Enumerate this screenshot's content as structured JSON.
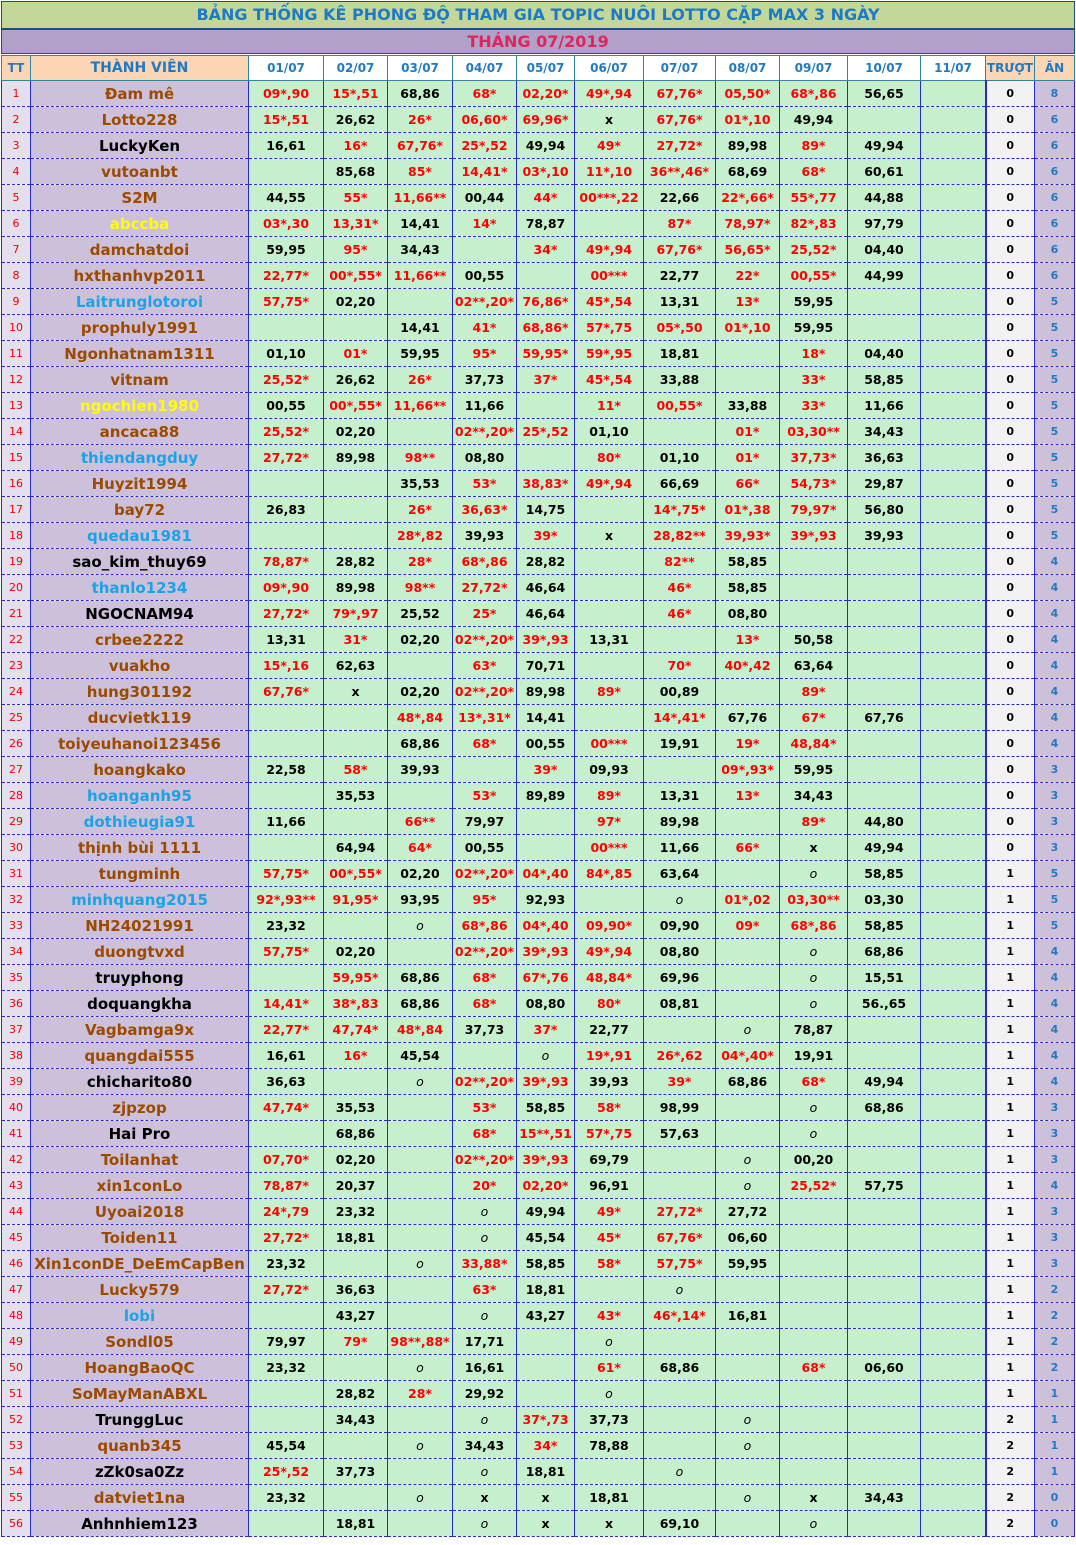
{
  "title": "BẢNG THỐNG KÊ PHONG ĐỘ  THAM GIA TOPIC NUÔI LOTTO CẶP MAX 3 NGÀY",
  "month": "THÁNG 07/2019",
  "headers": {
    "tt": "TT",
    "member": "THÀNH VIÊN",
    "days": [
      "01/07",
      "02/07",
      "03/07",
      "04/07",
      "05/07",
      "06/07",
      "07/07",
      "08/07",
      "09/07",
      "10/07",
      "11/07"
    ],
    "miss": "TRƯỢT",
    "win": "ĂN"
  },
  "colors": {
    "brown": "#9c4a00",
    "black": "#000000",
    "blue": "#1aa3e8",
    "yellow": "#ffff00",
    "hit": "#ff0000"
  },
  "rows": [
    {
      "tt": "1",
      "name": "Đam mê",
      "color": "brown",
      "days": [
        "09*,90",
        "15*,51",
        "68,86",
        "68*",
        "02,20*",
        "49*,94",
        "67,76*",
        "05,50*",
        "68*,86",
        "56,65",
        ""
      ],
      "miss": "0",
      "win": "8"
    },
    {
      "tt": "2",
      "name": "Lotto228",
      "color": "brown",
      "days": [
        "15*,51",
        "26,62",
        "26*",
        "06,60*",
        "69,96*",
        "x",
        "67,76*",
        "01*,10",
        "49,94",
        "",
        ""
      ],
      "miss": "0",
      "win": "6"
    },
    {
      "tt": "3",
      "name": "LuckyKen",
      "color": "black",
      "days": [
        "16,61",
        "16*",
        "67,76*",
        "25*,52",
        "49,94",
        "49*",
        "27,72*",
        "89,98",
        "89*",
        "49,94",
        ""
      ],
      "miss": "0",
      "win": "6"
    },
    {
      "tt": "4",
      "name": "vutoanbt",
      "color": "brown",
      "days": [
        "",
        "85,68",
        "85*",
        "14,41*",
        "03*,10",
        "11*,10",
        "36**,46*",
        "68,69",
        "68*",
        "60,61",
        ""
      ],
      "miss": "0",
      "win": "6"
    },
    {
      "tt": "5",
      "name": "S2M",
      "color": "brown",
      "days": [
        "44,55",
        "55*",
        "11,66**",
        "00,44",
        "44*",
        "00***,22",
        "22,66",
        "22*,66*",
        "55*,77",
        "44,88",
        ""
      ],
      "miss": "0",
      "win": "6"
    },
    {
      "tt": "6",
      "name": "abccba",
      "color": "yellow",
      "days": [
        "03*,30",
        "13,31*",
        "14,41",
        "14*",
        "78,87",
        "",
        "87*",
        "78,97*",
        "82*,83",
        "97,79",
        ""
      ],
      "miss": "0",
      "win": "6"
    },
    {
      "tt": "7",
      "name": "damchatdoi",
      "color": "brown",
      "days": [
        "59,95",
        "95*",
        "34,43",
        "",
        "34*",
        "49*,94",
        "67,76*",
        "56,65*",
        "25,52*",
        "04,40",
        ""
      ],
      "miss": "0",
      "win": "6"
    },
    {
      "tt": "8",
      "name": "hxthanhvp2011",
      "color": "brown",
      "days": [
        "22,77*",
        "00*,55*",
        "11,66**",
        "00,55",
        "",
        "00***",
        "22,77",
        "22*",
        "00,55*",
        "44,99",
        ""
      ],
      "miss": "0",
      "win": "6"
    },
    {
      "tt": "9",
      "name": "Laitrunglotoroi",
      "color": "blue",
      "days": [
        "57,75*",
        "02,20",
        "",
        "02**,20*",
        "76,86*",
        "45*,54",
        "13,31",
        "13*",
        "59,95",
        "",
        ""
      ],
      "miss": "0",
      "win": "5"
    },
    {
      "tt": "10",
      "name": "prophuly1991",
      "color": "brown",
      "days": [
        "",
        "",
        "14,41",
        "41*",
        "68,86*",
        "57*,75",
        "05*,50",
        "01*,10",
        "59,95",
        "",
        ""
      ],
      "miss": "0",
      "win": "5"
    },
    {
      "tt": "11",
      "name": "Ngonhatnam1311",
      "color": "brown",
      "days": [
        "01,10",
        "01*",
        "59,95",
        "95*",
        "59,95*",
        "59*,95",
        "18,81",
        "",
        "18*",
        "04,40",
        ""
      ],
      "miss": "0",
      "win": "5"
    },
    {
      "tt": "12",
      "name": "vitnam",
      "color": "brown",
      "days": [
        "25,52*",
        "26,62",
        "26*",
        "37,73",
        "37*",
        "45*,54",
        "33,88",
        "",
        "33*",
        "58,85",
        ""
      ],
      "miss": "0",
      "win": "5"
    },
    {
      "tt": "13",
      "name": "ngochien1980",
      "color": "yellow",
      "days": [
        "00,55",
        "00*,55*",
        "11,66**",
        "11,66",
        "",
        "11*",
        "00,55*",
        "33,88",
        "33*",
        "11,66",
        ""
      ],
      "miss": "0",
      "win": "5"
    },
    {
      "tt": "14",
      "name": "ancaca88",
      "color": "brown",
      "days": [
        "25,52*",
        "02,20",
        "",
        "02**,20*",
        "25*,52",
        "01,10",
        "",
        "01*",
        "03,30**",
        "34,43",
        ""
      ],
      "miss": "0",
      "win": "5"
    },
    {
      "tt": "15",
      "name": "thiendangduy",
      "color": "blue",
      "days": [
        "27,72*",
        "89,98",
        "98**",
        "08,80",
        "",
        "80*",
        "01,10",
        "01*",
        "37,73*",
        "36,63",
        ""
      ],
      "miss": "0",
      "win": "5"
    },
    {
      "tt": "16",
      "name": "Huyzit1994",
      "color": "brown",
      "days": [
        "",
        "",
        "35,53",
        "53*",
        "38,83*",
        "49*,94",
        "66,69",
        "66*",
        "54,73*",
        "29,87",
        ""
      ],
      "miss": "0",
      "win": "5"
    },
    {
      "tt": "17",
      "name": "bay72",
      "color": "brown",
      "days": [
        "26,83",
        "",
        "26*",
        "36,63*",
        "14,75",
        "",
        "14*,75*",
        "01*,38",
        "79,97*",
        "56,80",
        ""
      ],
      "miss": "0",
      "win": "5"
    },
    {
      "tt": "18",
      "name": "quedau1981",
      "color": "blue",
      "days": [
        "",
        "",
        "28*,82",
        "39,93",
        "39*",
        "x",
        "28,82**",
        "39,93*",
        "39*,93",
        "39,93",
        ""
      ],
      "miss": "0",
      "win": "5"
    },
    {
      "tt": "19",
      "name": "sao_kim_thuy69",
      "color": "black",
      "days": [
        "78,87*",
        "28,82",
        "28*",
        "68*,86",
        "28,82",
        "",
        "82**",
        "58,85",
        "",
        "",
        ""
      ],
      "miss": "0",
      "win": "4"
    },
    {
      "tt": "20",
      "name": "thanlo1234",
      "color": "blue",
      "days": [
        "09*,90",
        "89,98",
        "98**",
        "27,72*",
        "46,64",
        "",
        "46*",
        "58,85",
        "",
        "",
        ""
      ],
      "miss": "0",
      "win": "4"
    },
    {
      "tt": "21",
      "name": "NGOCNAM94",
      "color": "black",
      "days": [
        "27,72*",
        "79*,97",
        "25,52",
        "25*",
        "46,64",
        "",
        "46*",
        "08,80",
        "",
        "",
        ""
      ],
      "miss": "0",
      "win": "4"
    },
    {
      "tt": "22",
      "name": "crbee2222",
      "color": "brown",
      "days": [
        "13,31",
        "31*",
        "02,20",
        "02**,20*",
        "39*,93",
        "13,31",
        "",
        "13*",
        "50,58",
        "",
        ""
      ],
      "miss": "0",
      "win": "4"
    },
    {
      "tt": "23",
      "name": "vuakho",
      "color": "brown",
      "days": [
        "15*,16",
        "62,63",
        "",
        "63*",
        "70,71",
        "",
        "70*",
        "40*,42",
        "63,64",
        "",
        ""
      ],
      "miss": "0",
      "win": "4"
    },
    {
      "tt": "24",
      "name": "hung301192",
      "color": "brown",
      "days": [
        "67,76*",
        "x",
        "02,20",
        "02**,20*",
        "89,98",
        "89*",
        "00,89",
        "",
        "89*",
        "",
        ""
      ],
      "miss": "0",
      "win": "4"
    },
    {
      "tt": "25",
      "name": "ducvietk119",
      "color": "brown",
      "days": [
        "",
        "",
        "48*,84",
        "13*,31*",
        "14,41",
        "",
        "14*,41*",
        "67,76",
        "67*",
        "67,76",
        ""
      ],
      "miss": "0",
      "win": "4"
    },
    {
      "tt": "26",
      "name": "toiyeuhanoi123456",
      "color": "brown",
      "days": [
        "",
        "",
        "68,86",
        "68*",
        "00,55",
        "00***",
        "19,91",
        "19*",
        "48,84*",
        "",
        ""
      ],
      "miss": "0",
      "win": "4"
    },
    {
      "tt": "27",
      "name": "hoangkako",
      "color": "brown",
      "days": [
        "22,58",
        "58*",
        "39,93",
        "",
        "39*",
        "09,93",
        "",
        "09*,93*",
        "59,95",
        "",
        ""
      ],
      "miss": "0",
      "win": "3"
    },
    {
      "tt": "28",
      "name": "hoanganh95",
      "color": "blue",
      "days": [
        "",
        "35,53",
        "",
        "53*",
        "89,89",
        "89*",
        "13,31",
        "13*",
        "34,43",
        "",
        ""
      ],
      "miss": "0",
      "win": "3"
    },
    {
      "tt": "29",
      "name": "dothieugia91",
      "color": "blue",
      "days": [
        "11,66",
        "",
        "66**",
        "79,97",
        "",
        "97*",
        "89,98",
        "",
        "89*",
        "44,80",
        ""
      ],
      "miss": "0",
      "win": "3"
    },
    {
      "tt": "30",
      "name": "thịnh bùi 1111",
      "color": "brown",
      "days": [
        "",
        "64,94",
        "64*",
        "00,55",
        "",
        "00***",
        "11,66",
        "66*",
        "x",
        "49,94",
        ""
      ],
      "miss": "0",
      "win": "3"
    },
    {
      "tt": "31",
      "name": "tungminh",
      "color": "brown",
      "days": [
        "57,75*",
        "00*,55*",
        "02,20",
        "02**,20*",
        "04*,40",
        "84*,85",
        "63,64",
        "",
        "o",
        "58,85",
        ""
      ],
      "miss": "1",
      "win": "5"
    },
    {
      "tt": "32",
      "name": "minhquang2015",
      "color": "blue",
      "days": [
        "92*,93**",
        "91,95*",
        "93,95",
        "95*",
        "92,93",
        "",
        "o",
        "01*,02",
        "03,30**",
        "03,30",
        ""
      ],
      "miss": "1",
      "win": "5"
    },
    {
      "tt": "33",
      "name": "NH24021991",
      "color": "brown",
      "days": [
        "23,32",
        "",
        "o",
        "68*,86",
        "04*,40",
        "09,90*",
        "09,90",
        "09*",
        "68*,86",
        "58,85",
        ""
      ],
      "miss": "1",
      "win": "5"
    },
    {
      "tt": "34",
      "name": "duongtvxd",
      "color": "brown",
      "days": [
        "57,75*",
        "02,20",
        "",
        "02**,20*",
        "39*,93",
        "49*,94",
        "08,80",
        "",
        "o",
        "68,86",
        ""
      ],
      "miss": "1",
      "win": "4"
    },
    {
      "tt": "35",
      "name": "truyphong",
      "color": "black",
      "days": [
        "",
        "59,95*",
        "68,86",
        "68*",
        "67*,76",
        "48,84*",
        "69,96",
        "",
        "o",
        "15,51",
        ""
      ],
      "miss": "1",
      "win": "4"
    },
    {
      "tt": "36",
      "name": "doquangkha",
      "color": "black",
      "days": [
        "14,41*",
        "38*,83",
        "68,86",
        "68*",
        "08,80",
        "80*",
        "08,81",
        "",
        "o",
        "56.,65",
        ""
      ],
      "miss": "1",
      "win": "4"
    },
    {
      "tt": "37",
      "name": "Vagbamga9x",
      "color": "brown",
      "days": [
        "22,77*",
        "47,74*",
        "48*,84",
        "37,73",
        "37*",
        "22,77",
        "",
        "o",
        "78,87",
        "",
        ""
      ],
      "miss": "1",
      "win": "4"
    },
    {
      "tt": "38",
      "name": "quangdai555",
      "color": "brown",
      "days": [
        "16,61",
        "16*",
        "45,54",
        "",
        "o",
        "19*,91",
        "26*,62",
        "04*,40*",
        "19,91",
        "",
        ""
      ],
      "miss": "1",
      "win": "4"
    },
    {
      "tt": "39",
      "name": "chicharito80",
      "color": "black",
      "days": [
        "36,63",
        "",
        "o",
        "02**,20*",
        "39*,93",
        "39,93",
        "39*",
        "68,86",
        "68*",
        "49,94",
        ""
      ],
      "miss": "1",
      "win": "4"
    },
    {
      "tt": "40",
      "name": "zjpzop",
      "color": "brown",
      "days": [
        "47,74*",
        "35,53",
        "",
        "53*",
        "58,85",
        "58*",
        "98,99",
        "",
        "o",
        "68,86",
        ""
      ],
      "miss": "1",
      "win": "3"
    },
    {
      "tt": "41",
      "name": "Hai Pro",
      "color": "black",
      "days": [
        "",
        "68,86",
        "",
        "68*",
        "15**,51",
        "57*,75",
        "57,63",
        "",
        "o",
        "",
        ""
      ],
      "miss": "1",
      "win": "3"
    },
    {
      "tt": "42",
      "name": "Toilanhat",
      "color": "brown",
      "days": [
        "07,70*",
        "02,20",
        "",
        "02**,20*",
        "39*,93",
        "69,79",
        "",
        "o",
        "00,20",
        "",
        ""
      ],
      "miss": "1",
      "win": "3"
    },
    {
      "tt": "43",
      "name": "xin1conLo",
      "color": "brown",
      "days": [
        "78,87*",
        "20,37",
        "",
        "20*",
        "02,20*",
        "96,91",
        "",
        "o",
        "25,52*",
        "57,75",
        ""
      ],
      "miss": "1",
      "win": "4"
    },
    {
      "tt": "44",
      "name": "Uyoai2018",
      "color": "brown",
      "days": [
        "24*,79",
        "23,32",
        "",
        "o",
        "49,94",
        "49*",
        "27,72*",
        "27,72",
        "",
        "",
        ""
      ],
      "miss": "1",
      "win": "3"
    },
    {
      "tt": "45",
      "name": "Toiden11",
      "color": "brown",
      "days": [
        "27,72*",
        "18,81",
        "",
        "o",
        "45,54",
        "45*",
        "67,76*",
        "06,60",
        "",
        "",
        ""
      ],
      "miss": "1",
      "win": "3"
    },
    {
      "tt": "46",
      "name": "Xin1conDE_DeEmCapBen",
      "color": "brown",
      "days": [
        "23,32",
        "",
        "o",
        "33,88*",
        "58,85",
        "58*",
        "57,75*",
        "59,95",
        "",
        "",
        ""
      ],
      "miss": "1",
      "win": "3"
    },
    {
      "tt": "47",
      "name": "Lucky579",
      "color": "brown",
      "days": [
        "27,72*",
        "36,63",
        "",
        "63*",
        "18,81",
        "",
        "o",
        "",
        "",
        "",
        ""
      ],
      "miss": "1",
      "win": "2"
    },
    {
      "tt": "48",
      "name": "lobi",
      "color": "blue",
      "days": [
        "",
        "43,27",
        "",
        "o",
        "43,27",
        "43*",
        "46*,14*",
        "16,81",
        "",
        "",
        ""
      ],
      "miss": "1",
      "win": "2"
    },
    {
      "tt": "49",
      "name": "Sondl05",
      "color": "brown",
      "days": [
        "79,97",
        "79*",
        "98**,88*",
        "17,71",
        "",
        "o",
        "",
        "",
        "",
        "",
        ""
      ],
      "miss": "1",
      "win": "2"
    },
    {
      "tt": "50",
      "name": "HoangBaoQC",
      "color": "brown",
      "days": [
        "23,32",
        "",
        "o",
        "16,61",
        "",
        "61*",
        "68,86",
        "",
        "68*",
        "06,60",
        ""
      ],
      "miss": "1",
      "win": "2"
    },
    {
      "tt": "51",
      "name": "SoMayManABXL",
      "color": "brown",
      "days": [
        "",
        "28,82",
        "28*",
        "29,92",
        "",
        "o",
        "",
        "",
        "",
        "",
        ""
      ],
      "miss": "1",
      "win": "1"
    },
    {
      "tt": "52",
      "name": "TrunggLuc",
      "color": "black",
      "days": [
        "",
        "34,43",
        "",
        "o",
        "37*,73",
        "37,73",
        "",
        "o",
        "",
        "",
        ""
      ],
      "miss": "2",
      "win": "1"
    },
    {
      "tt": "53",
      "name": "quanb345",
      "color": "brown",
      "days": [
        "45,54",
        "",
        "o",
        "34,43",
        "34*",
        "78,88",
        "",
        "o",
        "",
        "",
        ""
      ],
      "miss": "2",
      "win": "1"
    },
    {
      "tt": "54",
      "name": "zZk0sa0Zz",
      "color": "black",
      "days": [
        "25*,52",
        "37,73",
        "",
        "o",
        "18,81",
        "",
        "o",
        "",
        "",
        "",
        ""
      ],
      "miss": "2",
      "win": "1"
    },
    {
      "tt": "55",
      "name": "datviet1na",
      "color": "brown",
      "days": [
        "23,32",
        "",
        "o",
        "x",
        "x",
        "18,81",
        "",
        "o",
        "x",
        "34,43",
        ""
      ],
      "miss": "2",
      "win": "0"
    },
    {
      "tt": "56",
      "name": "Anhnhiem123",
      "color": "black",
      "days": [
        "",
        "18,81",
        "",
        "o",
        "x",
        "x",
        "69,10",
        "",
        "o",
        "",
        ""
      ],
      "miss": "2",
      "win": "0"
    }
  ]
}
